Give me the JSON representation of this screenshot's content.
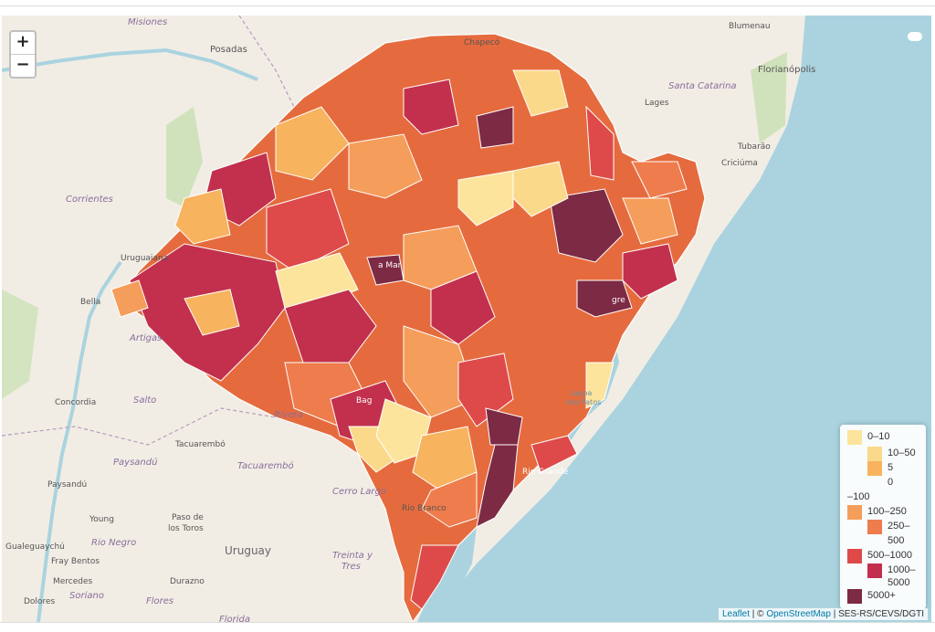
{
  "zoom": {
    "in_label": "+",
    "out_label": "−"
  },
  "legend": {
    "items": [
      {
        "label": "0–10",
        "color": "#fde49c"
      },
      {
        "label": "10–50",
        "color": "#fbd98a"
      },
      {
        "label": "5",
        "color": "#f8b35e"
      },
      {
        "label": "0",
        "color": ""
      },
      {
        "label": "–100",
        "color": ""
      },
      {
        "label": "100–250",
        "color": "#f59d5a"
      },
      {
        "label": "250–",
        "color": "#ee7c4c"
      },
      {
        "label": "500",
        "color": ""
      },
      {
        "label": "500–1000",
        "color": "#de4a4a"
      },
      {
        "label": "1000–",
        "color": "#c2304d"
      },
      {
        "label": "5000",
        "color": ""
      },
      {
        "label": "5000+",
        "color": "#7d2a45"
      }
    ]
  },
  "attribution": {
    "leaflet": "Leaflet",
    "sep1": " | © ",
    "osm": "OpenStreetMap",
    "sep2": " | SES-RS/CEVS/DGTI"
  },
  "place_labels": {
    "misiones": "Misiones",
    "posadas": "Posadas",
    "chapeco": "Chapecó",
    "blumenau": "Blumenau",
    "florianopolis": "Florianópolis",
    "lages": "Lages",
    "santa_catarina": "Santa Catarina",
    "tubarao": "Tubarão",
    "criciuma": "Criciúma",
    "corrientes": "Corrientes",
    "uruguaiana": "Uruguaiana",
    "bella": "Bella",
    "artigas": "Artigas",
    "concordia": "Concordia",
    "salto": "Salto",
    "rivera": "Rivera",
    "tacuarembo": "Tacuarembó",
    "paysandu_dept": "Paysandú",
    "paysandu": "Paysandú",
    "cerro_largo": "Cerro Largo",
    "rio_branco": "Rio Branco",
    "young": "Young",
    "paso": "Paso de",
    "los_toros": "los Toros",
    "uruguay": "Uruguay",
    "gualeguaychu": "Gualeguaychú",
    "rio_negro": "Rio Negro",
    "fray_bentos": "Fray Bentos",
    "mercedes": "Mercedes",
    "soriano": "Soriano",
    "durazno": "Durazno",
    "treinta": "Treinta y",
    "tres": "Tres",
    "dolores": "Dolores",
    "flores": "Flores",
    "florida": "Florida",
    "lagoa": "Lagoa",
    "dos_patos": "dos Patos",
    "rio_grande": "Rio Grande",
    "santa_maria": "a Mar",
    "bage": "Bag",
    "alegre": "gre"
  }
}
